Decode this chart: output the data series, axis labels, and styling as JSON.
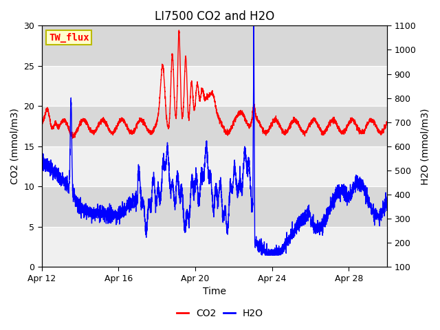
{
  "title": "LI7500 CO2 and H2O",
  "xlabel": "Time",
  "ylabel_left": "CO2 (mmol/m3)",
  "ylabel_right": "H2O (mmol/m3)",
  "legend_label": "TW_flux",
  "co2_color": "#FF0000",
  "h2o_color": "#0000FF",
  "background_color": "#FFFFFF",
  "plot_bg_light": "#F0F0F0",
  "plot_bg_dark": "#D8D8D8",
  "ylim_left": [
    0,
    30
  ],
  "ylim_right": [
    100,
    1100
  ],
  "xlim_start": 0,
  "xlim_end": 18,
  "x_ticks_labels": [
    "Apr 12",
    "Apr 16",
    "Apr 20",
    "Apr 24",
    "Apr 28"
  ],
  "x_ticks_positions": [
    0,
    4,
    8,
    12,
    16
  ],
  "y_ticks_left": [
    0,
    5,
    10,
    15,
    20,
    25,
    30
  ],
  "y_ticks_right": [
    100,
    200,
    300,
    400,
    500,
    600,
    700,
    800,
    900,
    1000,
    1100
  ],
  "band_edges_left": [
    0,
    5,
    10,
    15,
    20,
    25,
    30
  ],
  "title_fontsize": 12,
  "axis_label_fontsize": 10,
  "tick_fontsize": 9,
  "legend_fontsize": 10,
  "linewidth": 1.0
}
